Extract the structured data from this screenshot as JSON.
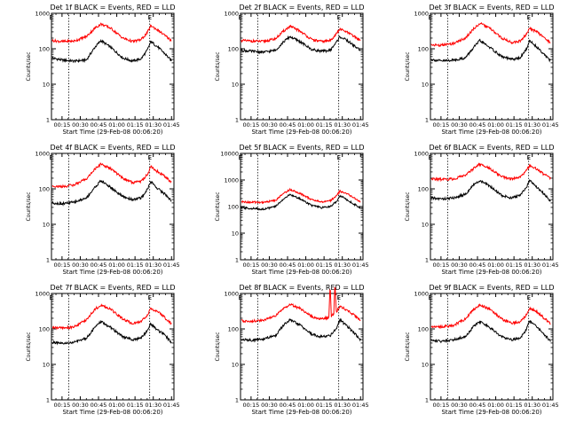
{
  "figure": {
    "colors": {
      "events": "#000000",
      "lld": "#ff0000",
      "axes": "#000000",
      "background": "#ffffff"
    }
  },
  "chart_data": [
    {
      "type": "line",
      "title": "Det 1f BLACK = Events, RED = LLD",
      "xlabel": "Start Time (29-Feb-08 00:06:20)",
      "ylabel": "Counts/sec",
      "yscale": "log",
      "ylim": [
        1,
        1000
      ],
      "y_ticks": [
        "1",
        "10",
        "100",
        "1000"
      ],
      "x_ticks": [
        "00:15",
        "00:30",
        "00:45",
        "01:00",
        "01:15",
        "01:30",
        "01:45"
      ],
      "grid": false,
      "markers": [
        "E",
        "E"
      ],
      "series": [
        {
          "key": "events",
          "x": [
            "00:07",
            "00:15",
            "00:25",
            "00:35",
            "00:42",
            "00:47",
            "00:55",
            "01:05",
            "01:13",
            "01:20",
            "01:25",
            "01:28",
            "01:34",
            "01:40",
            "01:45"
          ],
          "values": [
            55,
            48,
            45,
            48,
            110,
            170,
            110,
            55,
            45,
            52,
            90,
            160,
            110,
            70,
            45
          ]
        },
        {
          "key": "lld",
          "x": [
            "00:07",
            "00:15",
            "00:25",
            "00:35",
            "00:42",
            "00:47",
            "00:55",
            "01:05",
            "01:13",
            "01:20",
            "01:25",
            "01:28",
            "01:34",
            "01:40",
            "01:45"
          ],
          "values": [
            170,
            160,
            165,
            220,
            380,
            500,
            380,
            200,
            160,
            180,
            280,
            450,
            330,
            230,
            170
          ]
        }
      ]
    },
    {
      "type": "line",
      "title": "Det 2f BLACK = Events, RED = LLD",
      "xlabel": "Start Time (29-Feb-08 00:06:20)",
      "ylabel": "Counts/sec",
      "yscale": "log",
      "ylim": [
        1,
        1000
      ],
      "y_ticks": [
        "1",
        "10",
        "100",
        "1000"
      ],
      "x_ticks": [
        "00:15",
        "00:30",
        "00:45",
        "01:00",
        "01:15",
        "01:30",
        "01:45"
      ],
      "grid": false,
      "markers": [
        "E",
        "E"
      ],
      "series": [
        {
          "key": "events",
          "x": [
            "00:07",
            "00:15",
            "00:25",
            "00:35",
            "00:42",
            "00:47",
            "00:55",
            "01:05",
            "01:13",
            "01:20",
            "01:25",
            "01:28",
            "01:34",
            "01:40",
            "01:45"
          ],
          "values": [
            90,
            85,
            80,
            90,
            160,
            220,
            160,
            95,
            85,
            90,
            150,
            220,
            170,
            120,
            90
          ]
        },
        {
          "key": "lld",
          "x": [
            "00:07",
            "00:15",
            "00:25",
            "00:35",
            "00:42",
            "00:47",
            "00:55",
            "01:05",
            "01:13",
            "01:20",
            "01:25",
            "01:28",
            "01:34",
            "01:40",
            "01:45"
          ],
          "values": [
            170,
            165,
            160,
            190,
            320,
            430,
            320,
            180,
            160,
            170,
            260,
            360,
            290,
            220,
            170
          ]
        }
      ]
    },
    {
      "type": "line",
      "title": "Det 3f BLACK = Events, RED = LLD",
      "xlabel": "Start Time (29-Feb-08 00:06:20)",
      "ylabel": "Counts/sec",
      "yscale": "log",
      "ylim": [
        1,
        1000
      ],
      "y_ticks": [
        "1",
        "10",
        "100",
        "1000"
      ],
      "x_ticks": [
        "00:15",
        "00:30",
        "00:45",
        "01:00",
        "01:15",
        "01:30",
        "01:45"
      ],
      "grid": false,
      "markers": [
        "E",
        "E"
      ],
      "series": [
        {
          "key": "events",
          "x": [
            "00:07",
            "00:15",
            "00:25",
            "00:35",
            "00:42",
            "00:47",
            "00:55",
            "01:05",
            "01:13",
            "01:20",
            "01:25",
            "01:28",
            "01:34",
            "01:40",
            "01:45"
          ],
          "values": [
            50,
            45,
            48,
            55,
            110,
            170,
            110,
            60,
            50,
            55,
            95,
            170,
            110,
            70,
            45
          ]
        },
        {
          "key": "lld",
          "x": [
            "00:07",
            "00:15",
            "00:25",
            "00:35",
            "00:42",
            "00:47",
            "00:55",
            "01:05",
            "01:13",
            "01:20",
            "01:25",
            "01:28",
            "01:34",
            "01:40",
            "01:45"
          ],
          "values": [
            130,
            125,
            140,
            200,
            370,
            520,
            380,
            200,
            150,
            165,
            250,
            380,
            300,
            200,
            150
          ]
        }
      ]
    },
    {
      "type": "line",
      "title": "Det 4f BLACK = Events, RED = LLD",
      "xlabel": "Start Time (29-Feb-08 00:06:20)",
      "ylabel": "Counts/sec",
      "yscale": "log",
      "ylim": [
        1,
        1000
      ],
      "y_ticks": [
        "1",
        "10",
        "100",
        "1000"
      ],
      "x_ticks": [
        "00:15",
        "00:30",
        "00:45",
        "01:00",
        "01:15",
        "01:30",
        "01:45"
      ],
      "grid": false,
      "markers": [
        "E",
        "E"
      ],
      "series": [
        {
          "key": "events",
          "x": [
            "00:07",
            "00:15",
            "00:25",
            "00:35",
            "00:42",
            "00:47",
            "00:55",
            "01:05",
            "01:13",
            "01:20",
            "01:25",
            "01:28",
            "01:34",
            "01:40",
            "01:45"
          ],
          "values": [
            40,
            38,
            42,
            55,
            110,
            170,
            110,
            60,
            50,
            55,
            95,
            160,
            100,
            70,
            45
          ]
        },
        {
          "key": "lld",
          "x": [
            "00:07",
            "00:15",
            "00:25",
            "00:35",
            "00:42",
            "00:47",
            "00:55",
            "01:05",
            "01:13",
            "01:20",
            "01:25",
            "01:28",
            "01:34",
            "01:40",
            "01:45"
          ],
          "values": [
            120,
            115,
            130,
            190,
            360,
            500,
            370,
            200,
            150,
            165,
            250,
            420,
            300,
            220,
            150
          ]
        }
      ]
    },
    {
      "type": "line",
      "title": "Det 5f BLACK = Events, RED = LLD",
      "xlabel": "Start Time (29-Feb-08 00:06:20)",
      "ylabel": "Counts/sec",
      "yscale": "log",
      "ylim": [
        1,
        10000
      ],
      "y_ticks": [
        "1",
        "10",
        "100",
        "1000",
        "10000"
      ],
      "x_ticks": [
        "00:15",
        "00:30",
        "00:45",
        "01:00",
        "01:15",
        "01:30",
        "01:45"
      ],
      "grid": false,
      "markers": [
        "E",
        "E"
      ],
      "series": [
        {
          "key": "events",
          "x": [
            "00:07",
            "00:15",
            "00:25",
            "00:35",
            "00:42",
            "00:47",
            "00:55",
            "01:05",
            "01:13",
            "01:20",
            "01:25",
            "01:28",
            "01:34",
            "01:40",
            "01:45"
          ],
          "values": [
            90,
            85,
            80,
            100,
            200,
            280,
            200,
            110,
            90,
            100,
            150,
            260,
            180,
            120,
            90
          ]
        },
        {
          "key": "lld",
          "x": [
            "00:07",
            "00:15",
            "00:25",
            "00:35",
            "00:42",
            "00:47",
            "00:55",
            "01:05",
            "01:13",
            "01:20",
            "01:25",
            "01:28",
            "01:34",
            "01:40",
            "01:45"
          ],
          "values": [
            150,
            145,
            145,
            170,
            320,
            440,
            320,
            180,
            150,
            165,
            250,
            380,
            300,
            210,
            150
          ]
        }
      ]
    },
    {
      "type": "line",
      "title": "Det 6f BLACK = Events, RED = LLD",
      "xlabel": "Start Time (29-Feb-08 00:06:20)",
      "ylabel": "Counts/sec",
      "yscale": "log",
      "ylim": [
        1,
        1000
      ],
      "y_ticks": [
        "1",
        "10",
        "100",
        "1000"
      ],
      "x_ticks": [
        "00:15",
        "00:30",
        "00:45",
        "01:00",
        "01:15",
        "01:30",
        "01:45"
      ],
      "grid": false,
      "markers": [
        "E",
        "E"
      ],
      "series": [
        {
          "key": "events",
          "x": [
            "00:07",
            "00:15",
            "00:25",
            "00:35",
            "00:42",
            "00:47",
            "00:55",
            "01:05",
            "01:13",
            "01:20",
            "01:25",
            "01:28",
            "01:34",
            "01:40",
            "01:45"
          ],
          "values": [
            55,
            52,
            55,
            70,
            130,
            170,
            120,
            65,
            55,
            65,
            110,
            170,
            110,
            70,
            45
          ]
        },
        {
          "key": "lld",
          "x": [
            "00:07",
            "00:15",
            "00:25",
            "00:35",
            "00:42",
            "00:47",
            "00:55",
            "01:05",
            "01:13",
            "01:20",
            "01:25",
            "01:28",
            "01:34",
            "01:40",
            "01:45"
          ],
          "values": [
            190,
            185,
            190,
            240,
            380,
            500,
            380,
            220,
            190,
            210,
            320,
            450,
            360,
            250,
            200
          ]
        }
      ]
    },
    {
      "type": "line",
      "title": "Det 7f BLACK = Events, RED = LLD",
      "xlabel": "Start Time (29-Feb-08 00:06:20)",
      "ylabel": "Counts/sec",
      "yscale": "log",
      "ylim": [
        1,
        1000
      ],
      "y_ticks": [
        "1",
        "10",
        "100",
        "1000"
      ],
      "x_ticks": [
        "00:15",
        "00:30",
        "00:45",
        "01:00",
        "01:15",
        "01:30",
        "01:45"
      ],
      "grid": false,
      "markers": [
        "E",
        "E"
      ],
      "series": [
        {
          "key": "events",
          "x": [
            "00:07",
            "00:15",
            "00:25",
            "00:35",
            "00:42",
            "00:47",
            "00:55",
            "01:05",
            "01:13",
            "01:20",
            "01:25",
            "01:28",
            "01:34",
            "01:40",
            "01:45"
          ],
          "values": [
            42,
            38,
            42,
            55,
            110,
            160,
            110,
            60,
            50,
            55,
            90,
            140,
            90,
            65,
            40
          ]
        },
        {
          "key": "lld",
          "x": [
            "00:07",
            "00:15",
            "00:25",
            "00:35",
            "00:42",
            "00:47",
            "00:55",
            "01:05",
            "01:13",
            "01:20",
            "01:25",
            "01:28",
            "01:34",
            "01:40",
            "01:45"
          ],
          "values": [
            110,
            105,
            115,
            180,
            360,
            470,
            360,
            190,
            140,
            160,
            240,
            380,
            300,
            200,
            140
          ]
        }
      ]
    },
    {
      "type": "line",
      "title": "Det 8f BLACK = Events, RED = LLD",
      "xlabel": "Start Time (29-Feb-08 00:06:20)",
      "ylabel": "Counts/sec",
      "yscale": "log",
      "ylim": [
        1,
        1000
      ],
      "y_ticks": [
        "1",
        "10",
        "100",
        "1000"
      ],
      "x_ticks": [
        "00:15",
        "00:30",
        "00:45",
        "01:00",
        "01:15",
        "01:30",
        "01:45"
      ],
      "grid": false,
      "markers": [
        "E",
        "E"
      ],
      "series": [
        {
          "key": "events",
          "x": [
            "00:07",
            "00:15",
            "00:25",
            "00:35",
            "00:42",
            "00:47",
            "00:55",
            "01:05",
            "01:13",
            "01:20",
            "01:22",
            "01:25",
            "01:28",
            "01:34",
            "01:40",
            "01:45"
          ],
          "values": [
            50,
            48,
            52,
            65,
            130,
            180,
            130,
            70,
            60,
            65,
            80,
            100,
            180,
            120,
            75,
            50
          ]
        },
        {
          "key": "lld",
          "x": [
            "00:07",
            "00:15",
            "00:25",
            "00:35",
            "00:42",
            "00:47",
            "00:55",
            "01:05",
            "01:13",
            "01:19",
            "01:20",
            "01:21",
            "01:23",
            "01:24",
            "01:25",
            "01:28",
            "01:34",
            "01:40",
            "01:45"
          ],
          "values": [
            170,
            165,
            175,
            230,
            380,
            500,
            380,
            220,
            190,
            210,
            2000,
            220,
            280,
            2000,
            300,
            430,
            340,
            240,
            180
          ]
        }
      ]
    },
    {
      "type": "line",
      "title": "Det 9f BLACK = Events, RED = LLD",
      "xlabel": "Start Time (29-Feb-08 00:06:20)",
      "ylabel": "Counts/sec",
      "yscale": "log",
      "ylim": [
        1,
        1000
      ],
      "y_ticks": [
        "1",
        "10",
        "100",
        "1000"
      ],
      "x_ticks": [
        "00:15",
        "00:30",
        "00:45",
        "01:00",
        "01:15",
        "01:30",
        "01:45"
      ],
      "grid": false,
      "markers": [
        "E",
        "E"
      ],
      "series": [
        {
          "key": "events",
          "x": [
            "00:07",
            "00:15",
            "00:25",
            "00:35",
            "00:42",
            "00:47",
            "00:55",
            "01:05",
            "01:13",
            "01:20",
            "01:25",
            "01:28",
            "01:34",
            "01:40",
            "01:45"
          ],
          "values": [
            48,
            45,
            50,
            60,
            120,
            160,
            110,
            60,
            50,
            55,
            95,
            170,
            110,
            70,
            45
          ]
        },
        {
          "key": "lld",
          "x": [
            "00:07",
            "00:15",
            "00:25",
            "00:35",
            "00:42",
            "00:47",
            "00:55",
            "01:05",
            "01:13",
            "01:20",
            "01:25",
            "01:28",
            "01:34",
            "01:40",
            "01:45"
          ],
          "values": [
            120,
            115,
            125,
            190,
            360,
            480,
            360,
            190,
            145,
            160,
            240,
            390,
            300,
            200,
            140
          ]
        }
      ]
    }
  ]
}
